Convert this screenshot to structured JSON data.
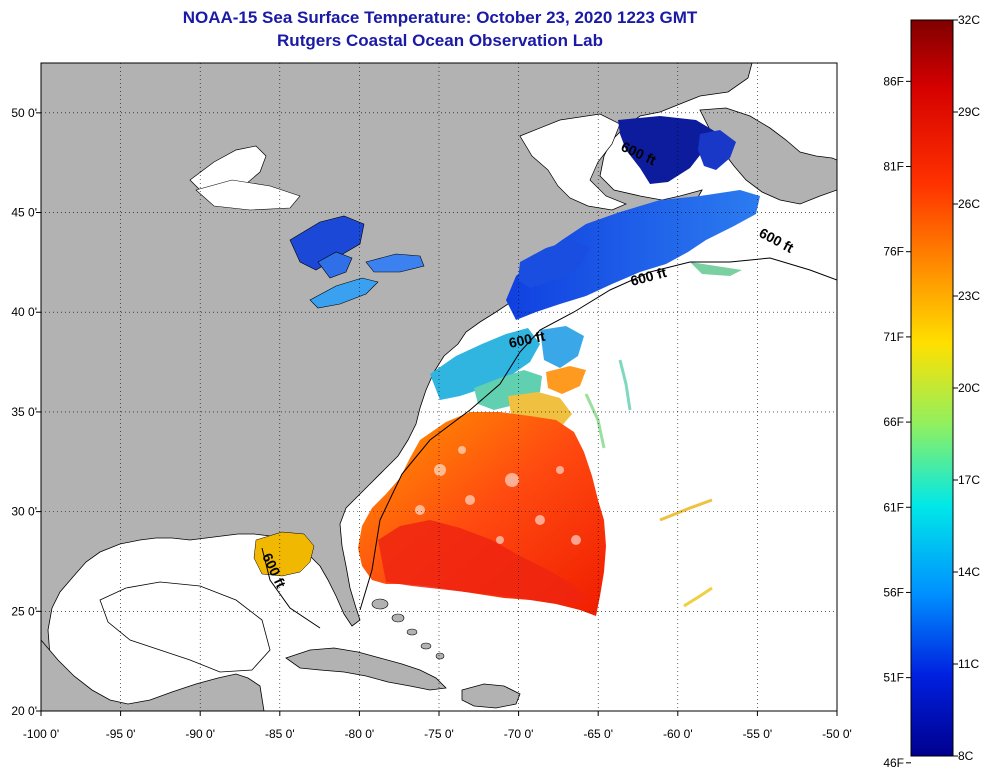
{
  "header": {
    "title": "NOAA-15 Sea Surface Temperature:  October 23, 2020 1223 GMT",
    "subtitle": "Rutgers Coastal Ocean Observation Lab"
  },
  "map": {
    "lon_range": [
      -100,
      -50
    ],
    "lat_range": [
      20,
      52.5
    ],
    "lon_ticks": [
      {
        "value": -100,
        "label": "-100 0'"
      },
      {
        "value": -95,
        "label": "-95 0'"
      },
      {
        "value": -90,
        "label": "-90 0'"
      },
      {
        "value": -85,
        "label": "-85 0'"
      },
      {
        "value": -80,
        "label": "-80 0'"
      },
      {
        "value": -75,
        "label": "-75 0'"
      },
      {
        "value": -70,
        "label": "-70 0'"
      },
      {
        "value": -65,
        "label": "-65 0'"
      },
      {
        "value": -60,
        "label": "-60 0'"
      },
      {
        "value": -55,
        "label": "-55 0'"
      },
      {
        "value": -50,
        "label": "-50 0'"
      }
    ],
    "lat_ticks": [
      {
        "value": 20,
        "label": "20 0'"
      },
      {
        "value": 25,
        "label": "25 0'"
      },
      {
        "value": 30,
        "label": "30 0'"
      },
      {
        "value": 35,
        "label": "35 0'"
      },
      {
        "value": 40,
        "label": "40 0'"
      },
      {
        "value": 45,
        "label": "45 0'"
      },
      {
        "value": 50,
        "label": "50 0'"
      }
    ],
    "isobath_labels": [
      "600 ft",
      "600 ft",
      "600 ft",
      "600 ft",
      "600 ft"
    ],
    "colors": {
      "land": "#b2b2b2",
      "ocean": "#ffffff",
      "border": "#000000"
    }
  },
  "colorbar": {
    "range_c": [
      8,
      32
    ],
    "celsius": [
      {
        "value": 32,
        "label": "32C"
      },
      {
        "value": 29,
        "label": "29C"
      },
      {
        "value": 26,
        "label": "26C"
      },
      {
        "value": 23,
        "label": "23C"
      },
      {
        "value": 20,
        "label": "20C"
      },
      {
        "value": 17,
        "label": "17C"
      },
      {
        "value": 14,
        "label": "14C"
      },
      {
        "value": 11,
        "label": "11C"
      },
      {
        "value": 8,
        "label": "8C"
      }
    ],
    "fahrenheit": [
      {
        "value": 86,
        "label": "86F"
      },
      {
        "value": 81,
        "label": "81F"
      },
      {
        "value": 76,
        "label": "76F"
      },
      {
        "value": 71,
        "label": "71F"
      },
      {
        "value": 66,
        "label": "66F"
      },
      {
        "value": 61,
        "label": "61F"
      },
      {
        "value": 56,
        "label": "56F"
      },
      {
        "value": 51,
        "label": "51F"
      },
      {
        "value": 46,
        "label": "46F"
      }
    ],
    "color_stops": [
      "#7f0000",
      "#ff0000",
      "#ff8000",
      "#ffff00",
      "#80ff80",
      "#00ffff",
      "#0080ff",
      "#0000ff",
      "#00008f"
    ]
  }
}
